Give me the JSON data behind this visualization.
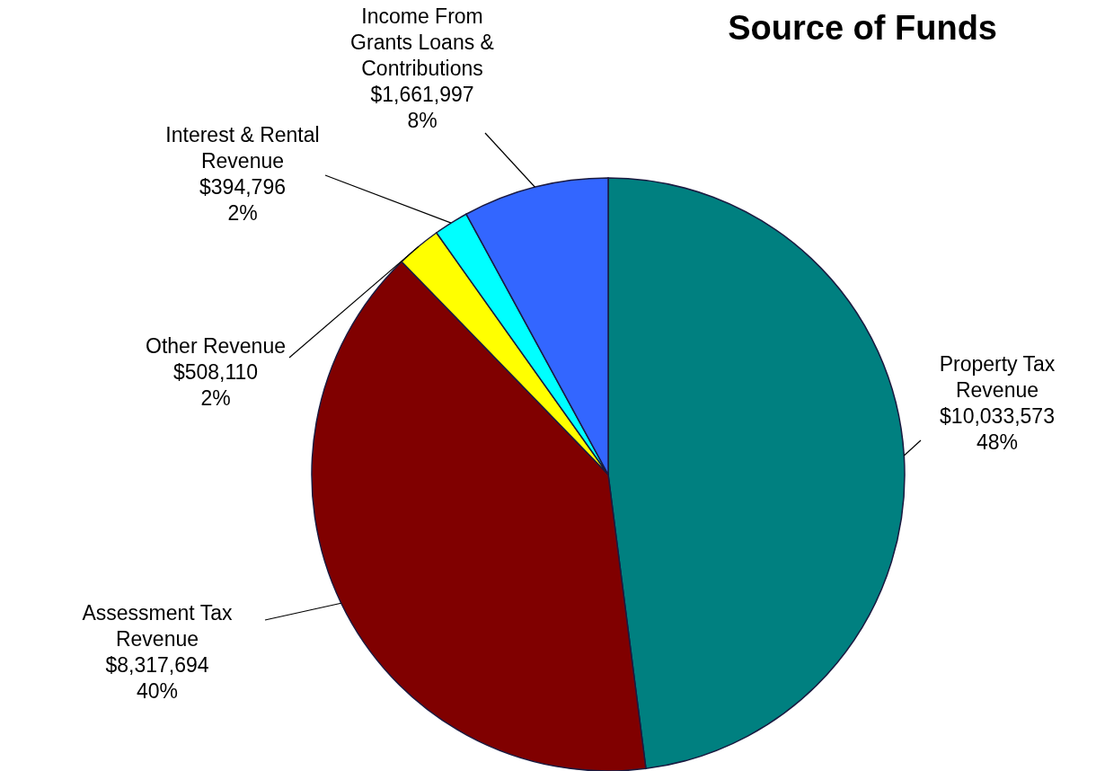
{
  "chart_data": {
    "type": "pie",
    "title": "Source of Funds",
    "categories": [
      "Property Tax Revenue",
      "Assessment Tax Revenue",
      "Other Revenue",
      "Interest & Rental Revenue",
      "Income From Grants Loans & Contributions"
    ],
    "values": [
      10033573,
      8317694,
      508110,
      394796,
      1661997
    ],
    "colors": [
      "#008080",
      "#800000",
      "#ffff00",
      "#00ffff",
      "#3366ff"
    ],
    "value_labels": [
      "$10,033,573\n48%",
      "$8,317,694\n40%",
      "$508,110\n2%",
      "$394,796\n2%",
      "$1,661,997\n8%"
    ]
  }
}
